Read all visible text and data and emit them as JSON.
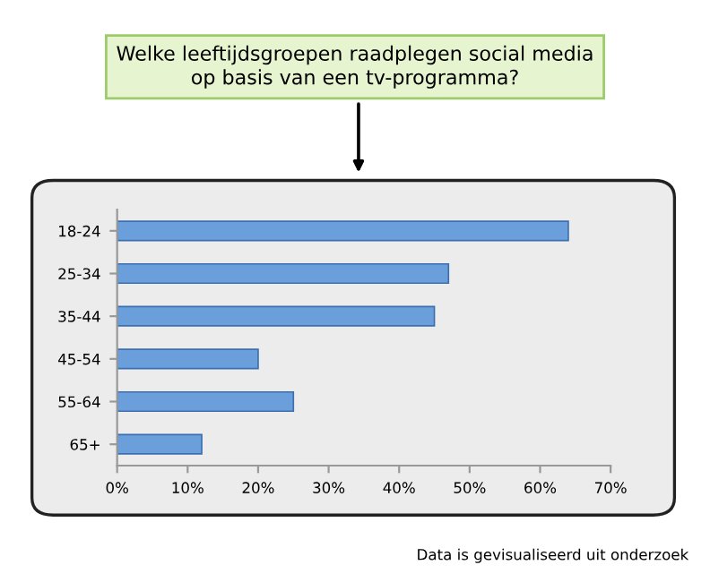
{
  "chart_data": {
    "type": "bar",
    "orientation": "horizontal",
    "title": "Welke leeftijdsgroepen raadplegen social media\nop basis van een tv-programma?",
    "categories": [
      "18-24",
      "25-34",
      "35-44",
      "45-54",
      "55-64",
      "65+"
    ],
    "values": [
      64,
      47,
      45,
      20,
      25,
      12
    ],
    "color": "#6a9fdc",
    "xlim": [
      0,
      70
    ],
    "xticks": [
      {
        "value": 0,
        "label": "0%"
      },
      {
        "value": 10,
        "label": "10%"
      },
      {
        "value": 20,
        "label": "20%"
      },
      {
        "value": 30,
        "label": "30%"
      },
      {
        "value": 40,
        "label": "40%"
      },
      {
        "value": 50,
        "label": "50%"
      },
      {
        "value": 60,
        "label": "60%"
      },
      {
        "value": 70,
        "label": "70%"
      }
    ],
    "grid": false,
    "annotations": [
      "Data is gevisualiseerd uit onderzoek"
    ]
  }
}
